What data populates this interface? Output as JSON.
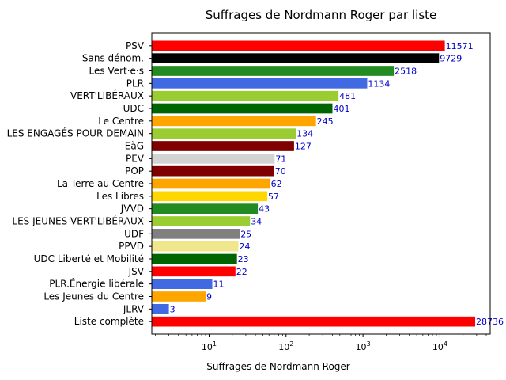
{
  "chart_data": {
    "type": "bar",
    "orientation": "horizontal",
    "title": "Suffrages de Nordmann Roger par liste",
    "xlabel": "Suffrages de Nordmann Roger",
    "ylabel": "",
    "xscale": "log",
    "xlim": [
      1.8,
      45000
    ],
    "xticks": [
      {
        "value": 10,
        "base": "10",
        "exp": "1"
      },
      {
        "value": 100,
        "base": "10",
        "exp": "2"
      },
      {
        "value": 1000,
        "base": "10",
        "exp": "3"
      },
      {
        "value": 10000,
        "base": "10",
        "exp": "4"
      }
    ],
    "grid": false,
    "legend": "none",
    "bars": [
      {
        "label": "PSV",
        "value": 11571,
        "color": "#ff0000"
      },
      {
        "label": "Sans dénom.",
        "value": 9729,
        "color": "#000000"
      },
      {
        "label": "Les Vert·e·s",
        "value": 2518,
        "color": "#228b22"
      },
      {
        "label": "PLR",
        "value": 1134,
        "color": "#4169e1"
      },
      {
        "label": "VERT'LIBÉRAUX",
        "value": 481,
        "color": "#9acd32"
      },
      {
        "label": "UDC",
        "value": 401,
        "color": "#006400"
      },
      {
        "label": "Le Centre",
        "value": 245,
        "color": "#ffa500"
      },
      {
        "label": "LES ENGAGÉS POUR DEMAIN",
        "value": 134,
        "color": "#9acd32"
      },
      {
        "label": "EàG",
        "value": 127,
        "color": "#800000"
      },
      {
        "label": "PEV",
        "value": 71,
        "color": "#d3d3d3"
      },
      {
        "label": "POP",
        "value": 70,
        "color": "#800000"
      },
      {
        "label": "La Terre au Centre",
        "value": 62,
        "color": "#ffa500"
      },
      {
        "label": "Les Libres",
        "value": 57,
        "color": "#ffd700"
      },
      {
        "label": "JVVD",
        "value": 43,
        "color": "#228b22"
      },
      {
        "label": "LES JEUNES VERT'LIBÉRAUX",
        "value": 34,
        "color": "#9acd32"
      },
      {
        "label": "UDF",
        "value": 25,
        "color": "#808080"
      },
      {
        "label": "PPVD",
        "value": 24,
        "color": "#f0e68c"
      },
      {
        "label": "UDC Liberté et Mobilité",
        "value": 23,
        "color": "#006400"
      },
      {
        "label": "JSV",
        "value": 22,
        "color": "#ff0000"
      },
      {
        "label": "PLR.Énergie libérale",
        "value": 11,
        "color": "#4169e1"
      },
      {
        "label": "Les Jeunes du Centre",
        "value": 9,
        "color": "#ffa500"
      },
      {
        "label": "JLRV",
        "value": 3,
        "color": "#4169e1"
      },
      {
        "label": "Liste complète",
        "value": 28736,
        "color": "#ff0000"
      }
    ]
  }
}
